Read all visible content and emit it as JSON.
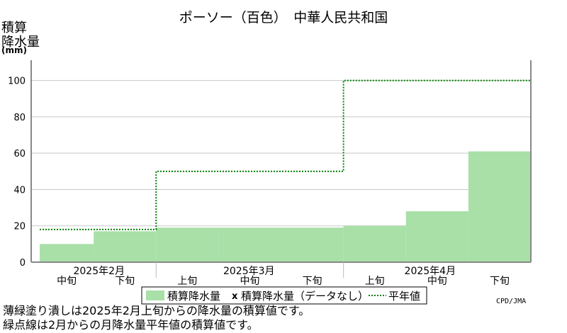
{
  "chart_data": {
    "type": "area",
    "title": "ポーソー（百色）　中華人民共和国",
    "ylabel": "積算\n降水量",
    "yunit": "(mm)",
    "ylim": [
      0,
      110
    ],
    "yticks": [
      0,
      20,
      40,
      60,
      80,
      100
    ],
    "grid": true,
    "x": [
      "2025年2月中旬",
      "2025年2月下旬",
      "2025年3月上旬",
      "2025年3月中旬",
      "2025年3月下旬",
      "2025年4月上旬",
      "2025年4月中旬",
      "2025年4月下旬"
    ],
    "month_labels": [
      "2025年2月",
      "2025年3月",
      "2025年4月"
    ],
    "dekad_labels": [
      "中旬",
      "下旬",
      "上旬",
      "中旬",
      "下旬",
      "上旬",
      "中旬",
      "下旬"
    ],
    "series": [
      {
        "name": "積算降水量",
        "values": [
          10,
          17,
          19,
          19,
          19,
          20,
          28,
          61
        ],
        "color": "#a8e0a8"
      },
      {
        "name": "平年値",
        "values": [
          18,
          18,
          50,
          50,
          50,
          100,
          100,
          100
        ],
        "color": "#008000"
      }
    ],
    "legend": {
      "placement": "bottom",
      "items": [
        "積算降水量",
        "積算降水量（データなし）",
        "平年値"
      ],
      "marker_x": "x"
    }
  },
  "credit": "CPD/JMA",
  "footnotes": [
    "薄緑塗り潰しは2025年2月上旬からの降水量の積算値です。",
    "緑点線は2月からの月降水量平年値の積算値です。"
  ],
  "colors": {
    "fill": "#a8e0a8",
    "normal_line": "#008000",
    "grid": "#c8c8c8",
    "axis": "#888888"
  }
}
